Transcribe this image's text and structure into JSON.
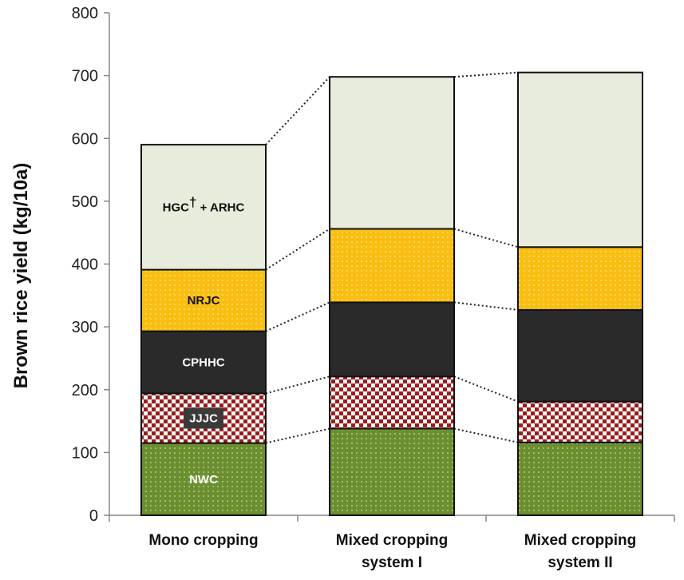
{
  "chart_data": {
    "type": "stacked-bar",
    "ylabel": "Brown rice yield (kg/10a)",
    "ylim": [
      0,
      800
    ],
    "yticks": [
      0,
      100,
      200,
      300,
      400,
      500,
      600,
      700,
      800
    ],
    "grid": false,
    "connector_lines": "dotted",
    "categories": [
      {
        "lines": [
          "Mono cropping"
        ]
      },
      {
        "lines": [
          "Mixed cropping",
          "system I"
        ]
      },
      {
        "lines": [
          "Mixed cropping",
          "system II"
        ]
      }
    ],
    "series": [
      {
        "name": "NWC",
        "label": "NWC",
        "label_superscript": "",
        "label_suffix": "",
        "label_color": "#ffffff",
        "label_bg": "",
        "fill": "#6b8e2f",
        "pattern": "dots-light",
        "values": [
          115,
          138,
          116
        ]
      },
      {
        "name": "JJJC",
        "label": "JJJC",
        "label_superscript": "",
        "label_suffix": "",
        "label_color": "#ffffff",
        "label_bg": "#3a3a3a",
        "fill": "#9b1c1c",
        "pattern": "checker",
        "values": [
          79,
          83,
          65
        ]
      },
      {
        "name": "CPHHC",
        "label": "CPHHC",
        "label_superscript": "",
        "label_suffix": "",
        "label_color": "#ffffff",
        "label_bg": "",
        "fill": "#2a2a2a",
        "pattern": "none",
        "values": [
          99,
          118,
          146
        ]
      },
      {
        "name": "NRJC",
        "label": "NRJC",
        "label_superscript": "",
        "label_suffix": "",
        "label_color": "#111111",
        "label_bg": "",
        "fill": "#f9be10",
        "pattern": "dots-light",
        "values": [
          98,
          117,
          100
        ]
      },
      {
        "name": "HGC + ARHC",
        "label": "HGC",
        "label_superscript": "†",
        "label_suffix": " + ARHC",
        "label_color": "#111111",
        "label_bg": "",
        "fill": "#e8ecdd",
        "pattern": "none",
        "values": [
          199,
          242,
          278
        ]
      }
    ]
  }
}
